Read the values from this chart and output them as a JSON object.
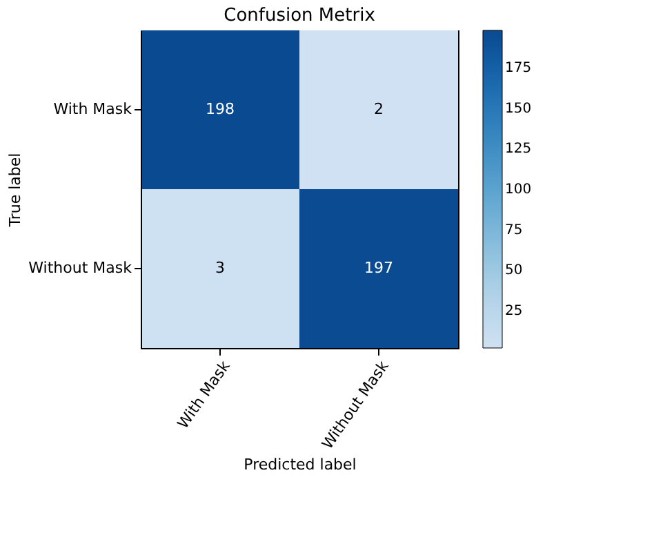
{
  "chart_data": {
    "type": "heatmap",
    "title": "Confusion Metrix",
    "xlabel": "Predicted label",
    "ylabel": "True label",
    "categories": [
      "With Mask",
      "Without Mask"
    ],
    "y_categories": [
      "With Mask",
      "Without Mask"
    ],
    "cells": [
      [
        198,
        2
      ],
      [
        3,
        197
      ]
    ],
    "data_labels": true,
    "clim": [
      2,
      198
    ],
    "cticks": [
      25,
      50,
      75,
      100,
      125,
      150,
      175
    ]
  }
}
